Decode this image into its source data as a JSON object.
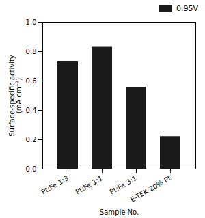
{
  "chart_data": {
    "type": "bar",
    "categories": [
      "Pt:Fe 1:3",
      "Pt:Fe 1:1",
      "Pt:Fe 3:1",
      "E-TEK 20% Pt"
    ],
    "series": [
      {
        "name": "0.95V",
        "color": "#1a1a1a",
        "values": [
          0.735,
          0.83,
          0.557,
          0.222
        ]
      }
    ],
    "xlabel": "Sample No.",
    "ylabel": "Surface-specific activity\n(mA cm⁻²)",
    "ylim": [
      0,
      1.0
    ],
    "yticks": [
      {
        "value": 0,
        "label": "0.0"
      },
      0.2,
      0.4,
      0.6,
      0.8,
      {
        "value": 1,
        "label": "1.0"
      }
    ],
    "legend": "upper right"
  }
}
